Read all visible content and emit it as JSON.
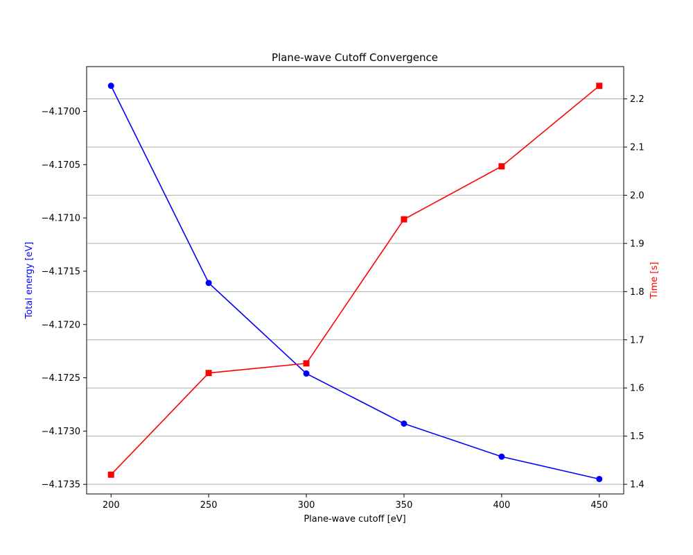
{
  "chart_data": {
    "type": "line",
    "title": "Plane-wave Cutoff Convergence",
    "xlabel": "Plane-wave cutoff [eV]",
    "ylabel_left": "Total energy [eV]",
    "ylabel_right": "Time [s]",
    "x": [
      200,
      250,
      300,
      350,
      400,
      450
    ],
    "xlim": [
      187.5,
      462.5
    ],
    "xticks": [
      200,
      250,
      300,
      350,
      400,
      450
    ],
    "ylim_left": [
      -4.17359,
      -4.16958
    ],
    "yticks_left": [
      -4.17,
      -4.1705,
      -4.171,
      -4.1715,
      -4.172,
      -4.1725,
      -4.173,
      -4.1735
    ],
    "yticks_left_labels": [
      "−4.1700",
      "−4.1705",
      "−4.1710",
      "−4.1715",
      "−4.1720",
      "−4.1725",
      "−4.1730",
      "−4.1735"
    ],
    "ylim_right": [
      1.38,
      2.267
    ],
    "yticks_right": [
      1.4,
      1.5,
      1.6,
      1.7,
      1.8,
      1.9,
      2.0,
      2.1,
      2.2
    ],
    "yticks_right_labels": [
      "1.4",
      "1.5",
      "1.6",
      "1.7",
      "1.8",
      "1.9",
      "2.0",
      "2.1",
      "2.2"
    ],
    "grid": "horizontal-right-axis",
    "series": [
      {
        "axis": "left",
        "color": "#0000ff",
        "marker": "circle",
        "values": [
          -4.16976,
          -4.17161,
          -4.17246,
          -4.17293,
          -4.17324,
          -4.17345
        ]
      },
      {
        "axis": "right",
        "color": "#ff0000",
        "marker": "square",
        "values": [
          1.42,
          1.631,
          1.651,
          1.95,
          2.06,
          2.227
        ]
      }
    ]
  }
}
